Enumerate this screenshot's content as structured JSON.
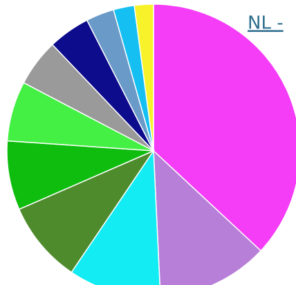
{
  "chart_data": {
    "type": "pie",
    "title": "NL -",
    "categories": [
      null,
      null,
      null,
      null,
      null,
      null,
      null,
      null,
      null,
      null,
      null
    ],
    "values": [
      36.9,
      12.3,
      10.2,
      9.0,
      7.6,
      6.6,
      5.2,
      4.6,
      3.1,
      2.3,
      2.1
    ],
    "colors": [
      "#f53cf7",
      "#b77fd8",
      "#12ecf2",
      "#4e8b2c",
      "#0fbd0f",
      "#43f043",
      "#9a9a9a",
      "#0c0c8c",
      "#6a9ac8",
      "#16bff2",
      "#f7f22a"
    ]
  }
}
